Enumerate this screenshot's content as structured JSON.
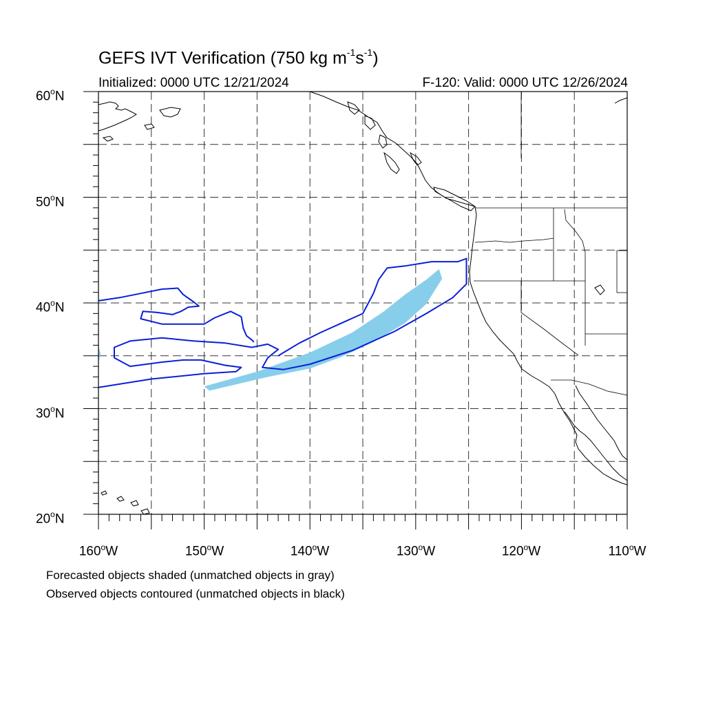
{
  "title": {
    "main": "GEFS IVT Verification (750 kg m",
    "exp1": "-1",
    "mid": "s",
    "exp2": "-1",
    "end": ")"
  },
  "initialized": "Initialized: 0000 UTC 12/21/2024",
  "valid": "F-120: Valid: 0000 UTC 12/26/2024",
  "lat_axis": [
    {
      "value": "60",
      "deg": "o",
      "hemi": "N"
    },
    {
      "value": "50",
      "deg": "o",
      "hemi": "N"
    },
    {
      "value": "40",
      "deg": "o",
      "hemi": "N"
    },
    {
      "value": "30",
      "deg": "o",
      "hemi": "N"
    },
    {
      "value": "20",
      "deg": "o",
      "hemi": "N"
    }
  ],
  "lon_axis": [
    {
      "value": "160",
      "deg": "o",
      "hemi": "W"
    },
    {
      "value": "150",
      "deg": "o",
      "hemi": "W"
    },
    {
      "value": "140",
      "deg": "o",
      "hemi": "W"
    },
    {
      "value": "130",
      "deg": "o",
      "hemi": "W"
    },
    {
      "value": "120",
      "deg": "o",
      "hemi": "W"
    },
    {
      "value": "110",
      "deg": "o",
      "hemi": "W"
    }
  ],
  "notes": {
    "forecast": "Forecasted objects shaded (unmatched objects in gray)",
    "observed": "Observed objects contoured (unmatched objects in black)"
  },
  "colors": {
    "forecast_fill": "#87ceeb",
    "observed_contour": "#0a1ed6",
    "grid": "#333333",
    "coast": "#000000"
  },
  "map_extent": {
    "lon_min": -160,
    "lon_max": -110,
    "lat_min": 20,
    "lat_max": 60
  },
  "grid": {
    "lon_step": 5,
    "lat_step": 5,
    "style": "dashed"
  },
  "forecast_object": {
    "type": "shaded",
    "outline": [
      [
        -150,
        32.1
      ],
      [
        -145,
        33.5
      ],
      [
        -140,
        35.3
      ],
      [
        -136,
        37.2
      ],
      [
        -133,
        39.2
      ],
      [
        -131,
        40.8
      ],
      [
        -129,
        42.2
      ],
      [
        -127.8,
        43.2
      ],
      [
        -127.5,
        42.3
      ],
      [
        -129,
        39.9
      ],
      [
        -131,
        38.1
      ],
      [
        -134,
        36.3
      ],
      [
        -137,
        34.9
      ],
      [
        -140,
        33.8
      ],
      [
        -144,
        33.0
      ],
      [
        -149.5,
        31.7
      ]
    ],
    "side_blob": [
      [
        -160,
        35.9
      ],
      [
        -159.8,
        35.2
      ],
      [
        -160,
        34.4
      ]
    ]
  },
  "observed_objects": [
    {
      "name": "contour-main",
      "points": [
        [
          -160,
          32.0
        ],
        [
          -155,
          32.8
        ],
        [
          -150,
          33.3
        ],
        [
          -147,
          33.5
        ],
        [
          -146.5,
          33.9
        ],
        [
          -148,
          34.1
        ],
        [
          -150.3,
          34.6
        ],
        [
          -152,
          34.6
        ],
        [
          -154,
          34.4
        ],
        [
          -157,
          34.0
        ],
        [
          -158.5,
          34.8
        ],
        [
          -158.5,
          35.8
        ],
        [
          -157,
          36.4
        ],
        [
          -154,
          36.7
        ],
        [
          -151,
          36.4
        ],
        [
          -148,
          36.2
        ],
        [
          -145.5,
          35.8
        ],
        [
          -144,
          36.1
        ],
        [
          -143,
          35.6
        ],
        [
          -144,
          34.8
        ],
        [
          -144.5,
          33.9
        ],
        [
          -142.5,
          33.7
        ],
        [
          -140,
          34.2
        ],
        [
          -136,
          35.5
        ],
        [
          -132,
          37.3
        ],
        [
          -129,
          39.0
        ],
        [
          -126.5,
          40.5
        ],
        [
          -125.2,
          41.8
        ],
        [
          -125.2,
          44.2
        ],
        [
          -126,
          43.9
        ],
        [
          -128.5,
          43.9
        ],
        [
          -131,
          43.5
        ],
        [
          -132.7,
          43.3
        ],
        [
          -133.5,
          42.2
        ],
        [
          -134,
          40.9
        ],
        [
          -135,
          39.0
        ],
        [
          -137,
          38.1
        ],
        [
          -139,
          37.2
        ],
        [
          -141,
          36.2
        ],
        [
          -142.5,
          35.3
        ],
        [
          -143,
          35.0
        ]
      ]
    },
    {
      "name": "contour-upper",
      "points": [
        [
          -160,
          40.2
        ],
        [
          -158,
          40.5
        ],
        [
          -156,
          40.9
        ],
        [
          -154,
          41.3
        ],
        [
          -152.5,
          41.4
        ],
        [
          -152,
          40.8
        ],
        [
          -151,
          40.1
        ],
        [
          -150.5,
          39.7
        ],
        [
          -151.5,
          39.6
        ],
        [
          -152.2,
          39.2
        ],
        [
          -153,
          38.9
        ],
        [
          -154.5,
          39.1
        ],
        [
          -155.8,
          39.2
        ],
        [
          -156,
          38.5
        ],
        [
          -154,
          38.0
        ],
        [
          -152,
          38.0
        ],
        [
          -150,
          38.0
        ],
        [
          -149,
          38.6
        ],
        [
          -147.5,
          39.2
        ],
        [
          -146.5,
          38.7
        ],
        [
          -146.3,
          37.6
        ],
        [
          -146,
          36.9
        ],
        [
          -145.5,
          36.5
        ],
        [
          -145.3,
          36.3
        ]
      ]
    }
  ]
}
